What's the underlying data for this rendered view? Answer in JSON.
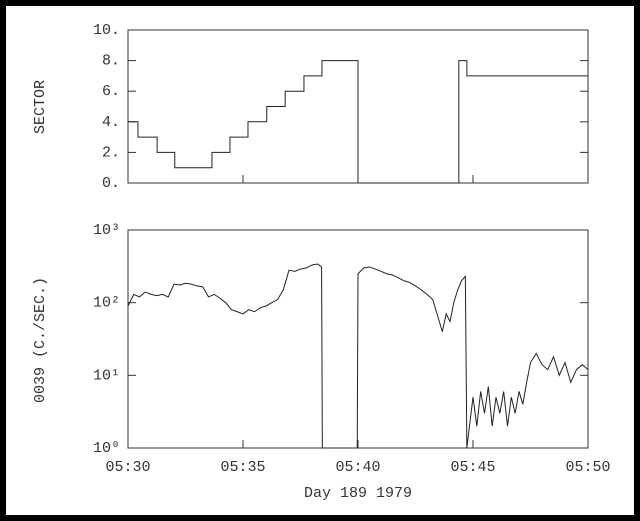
{
  "chart_data": [
    {
      "type": "line",
      "ylabel": "SECTOR",
      "step": "post",
      "color": "#222",
      "xlim": [
        "05:30",
        "05:50"
      ],
      "ylim": [
        0,
        10
      ],
      "yticks": [
        {
          "value": 0,
          "label": "0."
        },
        {
          "value": 2,
          "label": "2."
        },
        {
          "value": 4,
          "label": "4."
        },
        {
          "value": 6,
          "label": "6."
        },
        {
          "value": 8,
          "label": "8."
        },
        {
          "value": 10,
          "label": "10."
        }
      ],
      "x": [
        "05:30:00",
        "05:30:26",
        "05:31:16",
        "05:32:02",
        "05:33:39",
        "05:34:26",
        "05:35:13",
        "05:36:02",
        "05:36:50",
        "05:37:39",
        "05:38:26",
        "05:40:00",
        "05:44:23",
        "05:44:44",
        "05:50:00"
      ],
      "values": [
        4,
        3,
        2,
        1,
        2,
        3,
        4,
        5,
        6,
        7,
        8,
        0,
        8,
        7,
        7
      ]
    },
    {
      "type": "line",
      "ylabel": "0039 (C./SEC.)",
      "xlabel": "Day 189 1979",
      "log_scale": true,
      "color": "#222",
      "xlim": [
        "05:30",
        "05:50"
      ],
      "xticks": [
        "05:30",
        "05:35",
        "05:40",
        "05:45",
        "05:50"
      ],
      "ylim": [
        1,
        1000
      ],
      "yticks": [
        {
          "value": 1,
          "label": "10⁰"
        },
        {
          "value": 10,
          "label": "10¹"
        },
        {
          "value": 100,
          "label": "10²"
        },
        {
          "value": 1000,
          "label": "10³"
        }
      ],
      "x": [
        "05:30:00",
        "05:30:15",
        "05:30:30",
        "05:30:45",
        "05:31:00",
        "05:31:15",
        "05:31:30",
        "05:31:45",
        "05:32:00",
        "05:32:15",
        "05:32:30",
        "05:32:45",
        "05:33:00",
        "05:33:15",
        "05:33:30",
        "05:33:45",
        "05:34:00",
        "05:34:15",
        "05:34:30",
        "05:34:45",
        "05:35:00",
        "05:35:15",
        "05:35:30",
        "05:35:45",
        "05:36:00",
        "05:36:15",
        "05:36:30",
        "05:36:45",
        "05:37:00",
        "05:37:15",
        "05:37:30",
        "05:37:45",
        "05:38:00",
        "05:38:15",
        "05:38:25",
        "05:38:27",
        "05:39:58",
        "05:40:00",
        "05:40:15",
        "05:40:30",
        "05:40:45",
        "05:41:00",
        "05:41:15",
        "05:41:30",
        "05:41:45",
        "05:42:00",
        "05:42:15",
        "05:42:30",
        "05:42:45",
        "05:43:00",
        "05:43:15",
        "05:43:30",
        "05:43:40",
        "05:43:50",
        "05:44:00",
        "05:44:10",
        "05:44:20",
        "05:44:30",
        "05:44:40",
        "05:44:44",
        "05:45:00",
        "05:45:10",
        "05:45:20",
        "05:45:30",
        "05:45:40",
        "05:45:50",
        "05:46:00",
        "05:46:10",
        "05:46:20",
        "05:46:30",
        "05:46:40",
        "05:46:50",
        "05:47:00",
        "05:47:10",
        "05:47:20",
        "05:47:30",
        "05:47:45",
        "05:48:00",
        "05:48:15",
        "05:48:30",
        "05:48:45",
        "05:49:00",
        "05:49:15",
        "05:49:30",
        "05:49:45",
        "05:50:00"
      ],
      "values": [
        90,
        130,
        120,
        140,
        130,
        125,
        130,
        120,
        180,
        175,
        185,
        180,
        170,
        165,
        120,
        130,
        115,
        100,
        80,
        75,
        70,
        80,
        75,
        85,
        90,
        100,
        110,
        150,
        280,
        270,
        290,
        300,
        330,
        340,
        310,
        1,
        1,
        250,
        300,
        310,
        290,
        270,
        250,
        240,
        220,
        200,
        190,
        170,
        150,
        130,
        110,
        60,
        40,
        70,
        55,
        100,
        150,
        200,
        230,
        1,
        5,
        2,
        6,
        3,
        7,
        2,
        5,
        3,
        6,
        2,
        5,
        3,
        6,
        4,
        8,
        15,
        20,
        14,
        12,
        18,
        10,
        15,
        8,
        12,
        14,
        12
      ]
    }
  ]
}
